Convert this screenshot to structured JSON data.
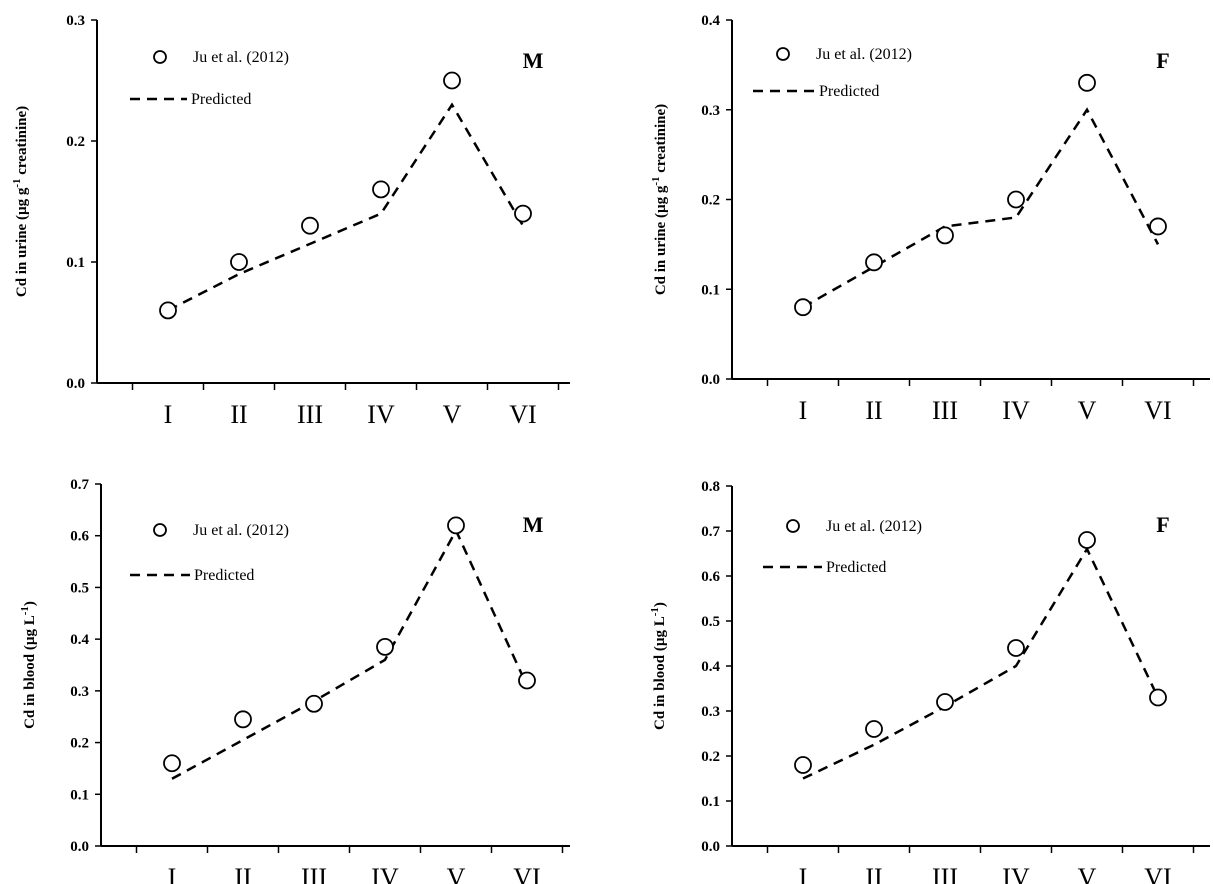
{
  "chart_data": [
    {
      "type": "line",
      "panel": "M",
      "categories": [
        "I",
        "II",
        "III",
        "IV",
        "V",
        "VI"
      ],
      "ylabel_main": "Cd in urine (µg g",
      "ylabel_sup": "-1",
      "ylabel_rest": " creatinine)",
      "ylim": [
        0,
        0.3
      ],
      "yticks": [
        "0.0",
        "0.1",
        "0.2",
        "0.3"
      ],
      "series": [
        {
          "name": "Ju et al. (2012)",
          "kind": "observed",
          "values": [
            0.06,
            0.1,
            0.13,
            0.16,
            0.25,
            0.14
          ]
        },
        {
          "name": "Predicted",
          "kind": "predicted",
          "values": [
            0.06,
            0.09,
            0.115,
            0.14,
            0.23,
            0.13
          ]
        }
      ]
    },
    {
      "type": "line",
      "panel": "F",
      "categories": [
        "I",
        "II",
        "III",
        "IV",
        "V",
        "VI"
      ],
      "ylabel_main": "Cd in urine (µg g",
      "ylabel_sup": "-1",
      "ylabel_rest": " creatinine)",
      "ylim": [
        0,
        0.4
      ],
      "yticks": [
        "0.0",
        "0.1",
        "0.2",
        "0.3",
        "0.4"
      ],
      "series": [
        {
          "name": "Ju et al. (2012)",
          "kind": "observed",
          "values": [
            0.08,
            0.13,
            0.16,
            0.2,
            0.33,
            0.17
          ]
        },
        {
          "name": "Predicted",
          "kind": "predicted",
          "values": [
            0.08,
            0.125,
            0.17,
            0.18,
            0.3,
            0.15
          ]
        }
      ]
    },
    {
      "type": "line",
      "panel": "M",
      "categories": [
        "I",
        "II",
        "III",
        "IV",
        "V",
        "VI"
      ],
      "ylabel_main": "Cd in blood (µg L",
      "ylabel_sup": "-1",
      "ylabel_rest": ")",
      "ylim": [
        0,
        0.7
      ],
      "yticks": [
        "0.0",
        "0.1",
        "0.2",
        "0.3",
        "0.4",
        "0.5",
        "0.6",
        "0.7"
      ],
      "series": [
        {
          "name": "Ju et al. (2012)",
          "kind": "observed",
          "values": [
            0.16,
            0.245,
            0.275,
            0.385,
            0.62,
            0.32
          ]
        },
        {
          "name": "Predicted",
          "kind": "predicted",
          "values": [
            0.13,
            0.205,
            0.28,
            0.36,
            0.61,
            0.31
          ]
        }
      ]
    },
    {
      "type": "line",
      "panel": "F",
      "categories": [
        "I",
        "II",
        "III",
        "IV",
        "V",
        "VI"
      ],
      "ylabel_main": "Cd in blood (µg L",
      "ylabel_sup": "-1",
      "ylabel_rest": ")",
      "ylim": [
        0,
        0.8
      ],
      "yticks": [
        "0.0",
        "0.1",
        "0.2",
        "0.3",
        "0.4",
        "0.5",
        "0.6",
        "0.7",
        "0.8"
      ],
      "series": [
        {
          "name": "Ju et al. (2012)",
          "kind": "observed",
          "values": [
            0.18,
            0.26,
            0.32,
            0.44,
            0.68,
            0.33
          ]
        },
        {
          "name": "Predicted",
          "kind": "predicted",
          "values": [
            0.15,
            0.225,
            0.31,
            0.4,
            0.66,
            0.33
          ]
        }
      ]
    }
  ]
}
